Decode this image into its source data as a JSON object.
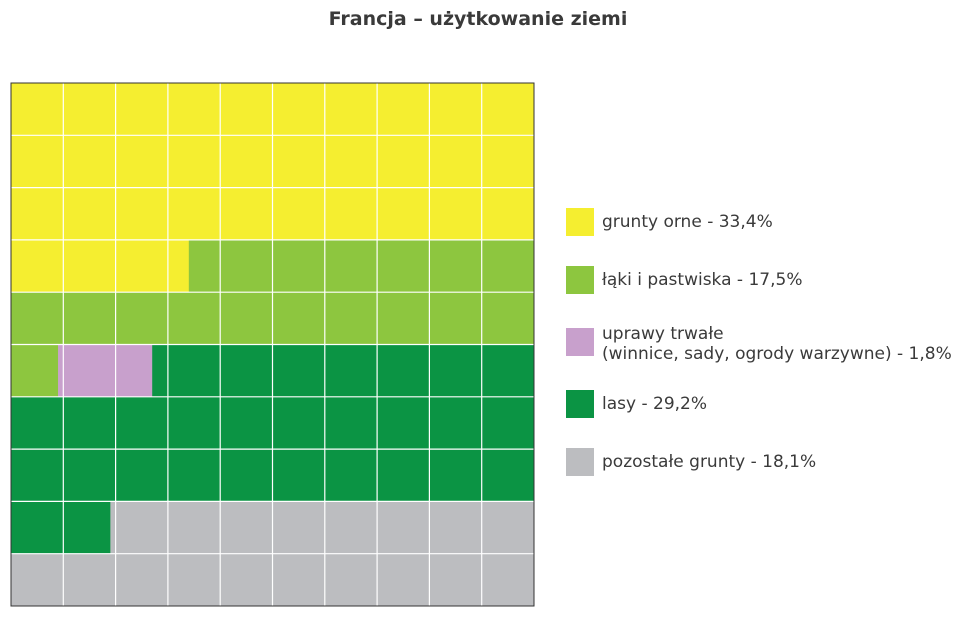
{
  "chart_data": {
    "type": "waffle",
    "title": "Francja – użytkowanie ziemi",
    "grid": {
      "rows": 10,
      "cols": 10,
      "gridlines": true
    },
    "categories": [
      {
        "label_lines": [
          "grunty orne - 33,4%"
        ],
        "value": 33.4,
        "color": "#f5ee30"
      },
      {
        "label_lines": [
          "łąki i pastwiska - 17,5%"
        ],
        "value": 17.5,
        "color": "#8dc63f"
      },
      {
        "label_lines": [
          "uprawy trwałe",
          "(winnice, sady, ogrody warzywne) - 1,8%"
        ],
        "value": 1.8,
        "color": "#c8a0cc"
      },
      {
        "label_lines": [
          "lasy - 29,2%"
        ],
        "value": 29.2,
        "color": "#0b9444"
      },
      {
        "label_lines": [
          "pozostałe grunty - 18,1%"
        ],
        "value": 18.1,
        "color": "#bcbdc0"
      }
    ],
    "legend_position": "right"
  }
}
